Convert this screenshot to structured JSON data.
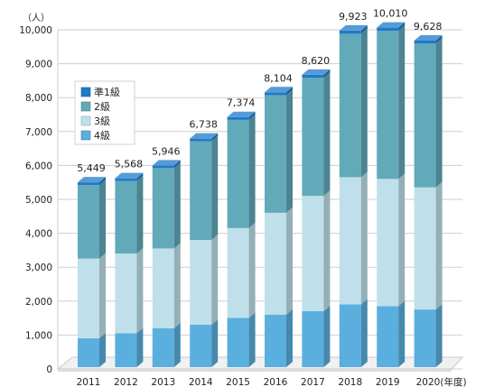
{
  "chart_data": {
    "type": "bar",
    "stacked": true,
    "three_d": true,
    "title": "",
    "ylabel": "（人）",
    "xlabel_suffix": "(年度)",
    "ylim": [
      0,
      10000
    ],
    "yticks": [
      0,
      1000,
      2000,
      3000,
      4000,
      5000,
      6000,
      7000,
      8000,
      9000,
      10000
    ],
    "ytick_labels": [
      "0",
      "1,000",
      "2,000",
      "3,000",
      "4,000",
      "5,000",
      "6,000",
      "7,000",
      "8,000",
      "9,000",
      "10,000"
    ],
    "grid": true,
    "legend_position": "upper-left",
    "categories": [
      "2011",
      "2012",
      "2013",
      "2014",
      "2015",
      "2016",
      "2017",
      "2018",
      "2019",
      "2020"
    ],
    "series": [
      {
        "name": "4級",
        "color": "#5aafde",
        "values": [
          850,
          1000,
          1150,
          1250,
          1450,
          1550,
          1650,
          1850,
          1800,
          1700
        ]
      },
      {
        "name": "3級",
        "color": "#bfe0ea",
        "values": [
          2350,
          2350,
          2350,
          2500,
          2650,
          3000,
          3400,
          3750,
          3750,
          3600
        ]
      },
      {
        "name": "2級",
        "color": "#62a9ba",
        "values": [
          2170,
          2140,
          2370,
          2910,
          3190,
          3470,
          3480,
          4230,
          4370,
          4240
        ]
      },
      {
        "name": "準1級",
        "color": "#1f7ac8",
        "values": [
          79,
          78,
          76,
          78,
          84,
          84,
          90,
          93,
          90,
          88
        ]
      }
    ],
    "totals": [
      5449,
      5568,
      5946,
      6738,
      7374,
      8104,
      8620,
      9923,
      10010,
      9628
    ],
    "total_labels": [
      "5,449",
      "5,568",
      "5,946",
      "6,738",
      "7,374",
      "8,104",
      "8,620",
      "9,923",
      "10,010",
      "9,628"
    ]
  }
}
